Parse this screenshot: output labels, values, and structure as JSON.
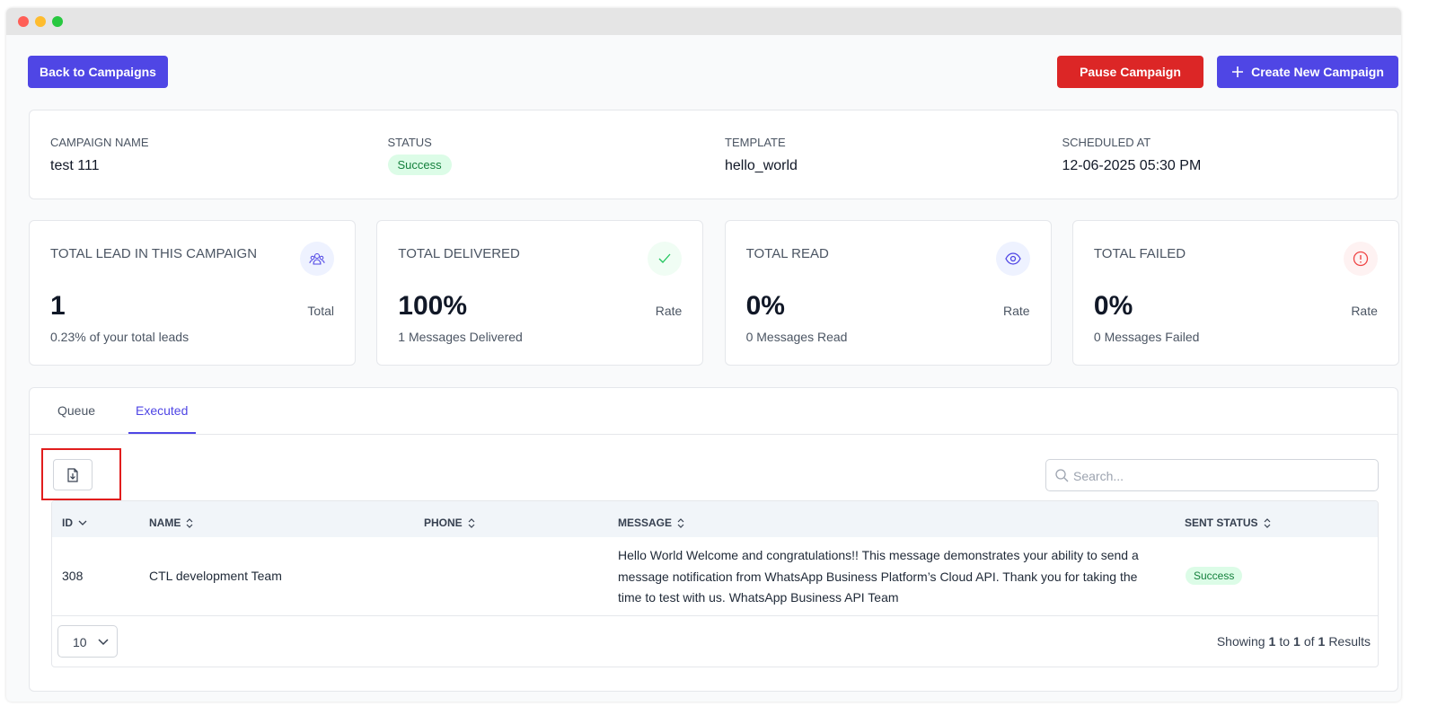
{
  "header": {
    "back_button": "Back to Campaigns",
    "pause_button": "Pause Campaign",
    "create_button": "Create New Campaign"
  },
  "campaign": {
    "fields": [
      {
        "label": "CAMPAIGN NAME",
        "value": "test 111"
      },
      {
        "label": "STATUS",
        "value": "Success",
        "badge": true
      },
      {
        "label": "TEMPLATE",
        "value": "hello_world"
      },
      {
        "label": "SCHEDULED AT",
        "value": "12-06-2025 05:30 PM"
      }
    ]
  },
  "stats": [
    {
      "title": "TOTAL LEAD IN THIS CAMPAIGN",
      "value": "1",
      "unit": "Total",
      "note": "0.23% of your total leads"
    },
    {
      "title": "TOTAL DELIVERED",
      "value": "100%",
      "unit": "Rate",
      "note": "1 Messages Delivered"
    },
    {
      "title": "TOTAL READ",
      "value": "0%",
      "unit": "Rate",
      "note": "0 Messages Read"
    },
    {
      "title": "TOTAL FAILED",
      "value": "0%",
      "unit": "Rate",
      "note": "0 Messages Failed"
    }
  ],
  "tabs": [
    {
      "label": "Queue"
    },
    {
      "label": "Executed",
      "active": true
    }
  ],
  "table": {
    "search_placeholder": "Search...",
    "columns": [
      "ID",
      "NAME",
      "PHONE",
      "MESSAGE",
      "SENT STATUS"
    ],
    "rows": [
      {
        "id": "308",
        "name": "CTL development Team",
        "message": "Hello World Welcome and congratulations!! This message demonstrates your ability to send a message notification from WhatsApp Business Platform’s Cloud API. Thank you for taking the time to test with us. WhatsApp Business API Team",
        "sent_status": "Success"
      }
    ]
  },
  "pagination": {
    "page_size": "10",
    "summary": [
      {
        "text": "Showing"
      },
      {
        "text": "1",
        "bold": true
      },
      {
        "text": "to"
      },
      {
        "text": "1",
        "bold": true
      },
      {
        "text": "of"
      },
      {
        "text": "1",
        "bold": true
      },
      {
        "text": "Results"
      }
    ]
  }
}
